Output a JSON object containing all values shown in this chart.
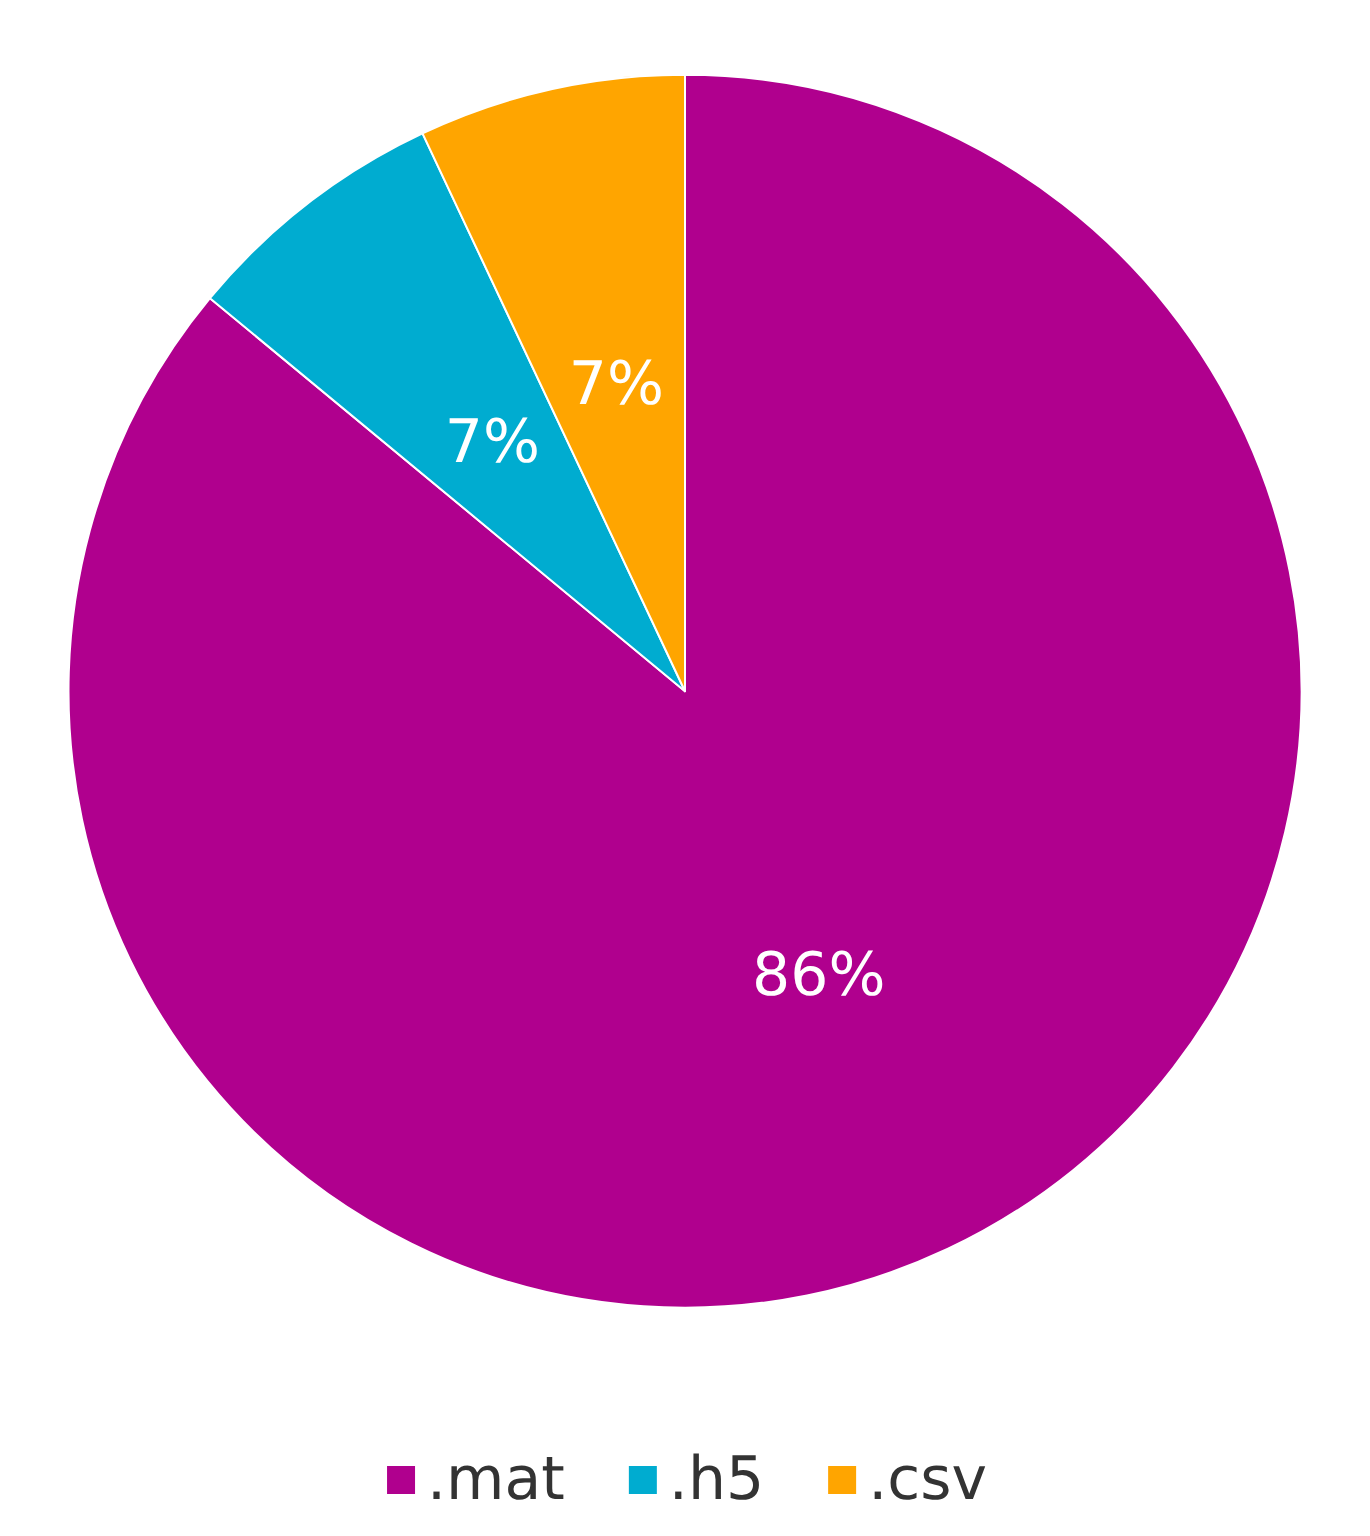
{
  "chart_data": {
    "type": "pie",
    "categories": [
      ".mat",
      ".h5",
      ".csv"
    ],
    "values": [
      86,
      7,
      7
    ],
    "colors": [
      "#b0008e",
      "#00acd0",
      "#ffa500"
    ],
    "value_labels": [
      "86%",
      "7%",
      "7%"
    ],
    "legend": "bottom"
  }
}
